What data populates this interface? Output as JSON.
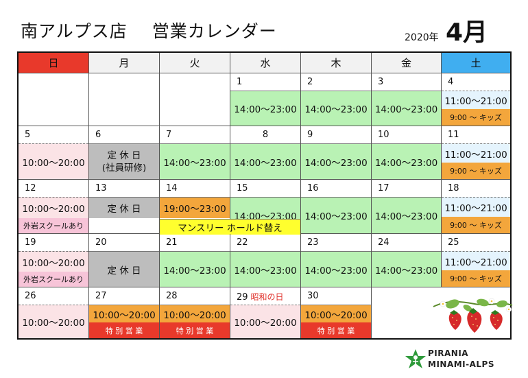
{
  "header": {
    "store": "南アルプス店",
    "heading": "営業カレンダー",
    "year": "2020年",
    "month": "4月"
  },
  "weekdays": [
    "日",
    "月",
    "火",
    "水",
    "木",
    "金",
    "土"
  ],
  "colors": {
    "sunday": "#e8392b",
    "saturday": "#40aef0",
    "weekday_header": "#f2f2f2",
    "green": "#b9f2b4",
    "pink": "#fbe3e6",
    "blue": "#e5f4fd",
    "orange": "#f3a63c",
    "red": "#e8392b",
    "gray": "#bdbdbd",
    "yellow": "#ffff2e",
    "lavender": "#f7c4d8"
  },
  "labels": {
    "h14_23": "14:00～23:00",
    "h11_21": "11:00～21:00",
    "h10_20": "10:00～20:00",
    "h19_23": "19:00～23:00",
    "kids": "9:00 ～ キッズ",
    "closed": "定 休 日",
    "staff_training": "(社員研修)",
    "outdoor_school": "外岩スクールあり",
    "monthly_hold": "マンスリー ホールド替え",
    "special": "特 別 営 業",
    "showa_day": "昭和の日"
  },
  "logo": {
    "line1": "PIRANIA",
    "line2": "MINAMI-ALPS",
    "icon": "climber-star-icon"
  },
  "decor": {
    "icon": "strawberry-illustration-icon"
  }
}
